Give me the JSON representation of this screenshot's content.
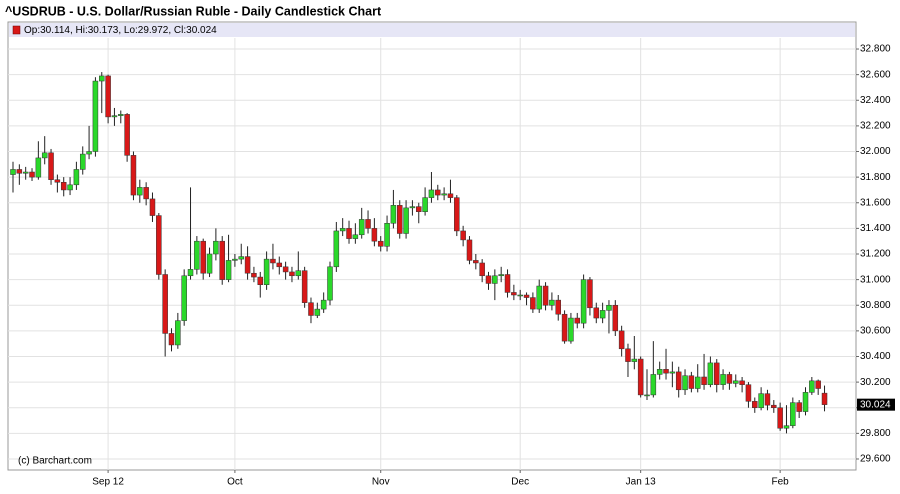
{
  "chart_data": {
    "type": "candlestick",
    "title": "^USDRUB - U.S. Dollar/Russian Ruble - Daily Candlestick Chart",
    "legend": "Op:30.114, Hi:30.173, Lo:29.972, Cl:30.024",
    "watermark": "(c) Barchart.com",
    "up_color": "#2ad82a",
    "down_color": "#d81818",
    "grid": true,
    "ylim": [
      29.514,
      32.886
    ],
    "yticks": [
      {
        "value": 29.6,
        "label": "29.600"
      },
      {
        "value": 29.8,
        "label": "29.800"
      },
      {
        "value": 30.0,
        "label": "30.000"
      },
      {
        "value": 30.2,
        "label": "30.200"
      },
      {
        "value": 30.4,
        "label": "30.400"
      },
      {
        "value": 30.6,
        "label": "30.600"
      },
      {
        "value": 30.8,
        "label": "30.800"
      },
      {
        "value": 31.0,
        "label": "31.000"
      },
      {
        "value": 31.2,
        "label": "31.200"
      },
      {
        "value": 31.4,
        "label": "31.400"
      },
      {
        "value": 31.6,
        "label": "31.600"
      },
      {
        "value": 31.8,
        "label": "31.800"
      },
      {
        "value": 32.0,
        "label": "32.000"
      },
      {
        "value": 32.2,
        "label": "32.200"
      },
      {
        "value": 32.4,
        "label": "32.400"
      },
      {
        "value": 32.6,
        "label": "32.600"
      },
      {
        "value": 32.8,
        "label": "32.800"
      }
    ],
    "categories": [
      null,
      null,
      null,
      null,
      null,
      null,
      null,
      null,
      null,
      null,
      null,
      null,
      null,
      null,
      null,
      "Sep 12",
      null,
      null,
      null,
      null,
      null,
      null,
      null,
      null,
      null,
      null,
      null,
      null,
      null,
      null,
      null,
      null,
      null,
      null,
      null,
      "Oct",
      null,
      null,
      null,
      null,
      null,
      null,
      null,
      null,
      null,
      null,
      null,
      null,
      null,
      null,
      null,
      null,
      null,
      null,
      null,
      null,
      null,
      null,
      "Nov",
      null,
      null,
      null,
      null,
      null,
      null,
      null,
      null,
      null,
      null,
      null,
      null,
      null,
      null,
      null,
      null,
      null,
      null,
      null,
      null,
      null,
      "Dec",
      null,
      null,
      null,
      null,
      null,
      null,
      null,
      null,
      null,
      null,
      null,
      null,
      null,
      null,
      null,
      null,
      null,
      null,
      "Jan 13",
      null,
      null,
      null,
      null,
      null,
      null,
      null,
      null,
      null,
      null,
      null,
      null,
      null,
      null,
      null,
      null,
      null,
      null,
      null,
      null,
      null,
      "Feb",
      null,
      null,
      null,
      null,
      null,
      null,
      null
    ],
    "open": [
      31.82,
      31.86,
      31.83,
      31.84,
      31.8,
      31.95,
      31.99,
      31.78,
      31.76,
      31.7,
      31.74,
      31.86,
      31.98,
      32.0,
      32.55,
      32.59,
      32.27,
      32.28,
      32.29,
      31.97,
      31.66,
      31.72,
      31.63,
      31.5,
      31.04,
      30.58,
      30.49,
      30.68,
      31.03,
      31.08,
      31.3,
      31.05,
      31.2,
      31.3,
      31.0,
      31.15,
      31.16,
      31.18,
      31.05,
      31.02,
      30.96,
      31.16,
      31.13,
      31.1,
      31.06,
      31.03,
      31.07,
      30.82,
      30.72,
      30.77,
      30.84,
      31.1,
      31.38,
      31.4,
      31.32,
      31.35,
      31.47,
      31.4,
      31.3,
      31.26,
      31.44,
      31.58,
      31.36,
      31.56,
      31.57,
      31.53,
      31.64,
      31.7,
      31.66,
      31.67,
      31.64,
      31.38,
      31.31,
      31.15,
      31.13,
      31.03,
      30.97,
      31.03,
      31.04,
      30.9,
      30.88,
      30.88,
      30.86,
      30.77,
      30.95,
      30.8,
      30.84,
      30.73,
      30.52,
      30.7,
      30.66,
      31.0,
      30.78,
      30.7,
      30.76,
      30.8,
      30.6,
      30.46,
      30.36,
      30.38,
      30.1,
      30.1,
      30.26,
      30.3,
      30.27,
      30.28,
      30.14,
      30.25,
      30.15,
      30.24,
      30.18,
      30.35,
      30.18,
      30.26,
      30.19,
      30.21,
      30.18,
      30.05,
      30.0,
      30.11,
      30.02,
      30.0,
      29.84,
      29.86,
      30.04,
      29.97,
      30.12,
      30.21,
      30.114
    ],
    "high": [
      31.92,
      31.9,
      31.88,
      31.87,
      32.08,
      32.12,
      32.02,
      31.82,
      31.8,
      31.8,
      31.92,
      32.04,
      32.2,
      32.58,
      32.62,
      32.6,
      32.34,
      32.32,
      32.3,
      32.0,
      31.78,
      31.76,
      31.68,
      31.52,
      31.08,
      30.62,
      30.74,
      31.08,
      31.72,
      31.34,
      31.32,
      31.25,
      31.4,
      31.34,
      31.35,
      31.2,
      31.28,
      31.26,
      31.1,
      31.06,
      31.22,
      31.28,
      31.18,
      31.14,
      31.1,
      31.22,
      31.1,
      30.86,
      30.82,
      30.9,
      31.14,
      31.45,
      31.48,
      31.46,
      31.44,
      31.56,
      31.54,
      31.48,
      31.34,
      31.5,
      31.7,
      31.62,
      31.62,
      31.62,
      31.6,
      31.72,
      31.84,
      31.74,
      31.72,
      31.78,
      31.66,
      31.42,
      31.34,
      31.2,
      31.16,
      31.06,
      31.08,
      31.1,
      31.08,
      30.96,
      30.92,
      30.9,
      30.9,
      31.0,
      30.98,
      30.9,
      30.88,
      30.76,
      30.74,
      30.74,
      31.04,
      31.02,
      30.82,
      30.82,
      30.84,
      30.84,
      30.64,
      30.5,
      30.56,
      30.4,
      30.3,
      30.52,
      30.36,
      30.46,
      30.36,
      30.32,
      30.3,
      30.28,
      30.34,
      30.42,
      30.4,
      30.38,
      30.3,
      30.28,
      30.26,
      30.24,
      30.2,
      30.08,
      30.16,
      30.14,
      30.06,
      30.04,
      30.02,
      30.08,
      30.06,
      30.16,
      30.24,
      30.22,
      30.173
    ],
    "low": [
      31.68,
      31.74,
      31.78,
      31.77,
      31.78,
      31.9,
      31.74,
      31.68,
      31.65,
      31.66,
      31.7,
      31.82,
      31.94,
      31.96,
      32.3,
      32.22,
      32.2,
      32.22,
      31.92,
      31.62,
      31.6,
      31.58,
      31.45,
      31.0,
      30.4,
      30.44,
      30.46,
      30.64,
      31.0,
      31.04,
      31.0,
      31.02,
      31.15,
      30.96,
      30.98,
      31.1,
      31.12,
      31.0,
      30.98,
      30.86,
      30.92,
      31.08,
      31.04,
      31.0,
      30.98,
      31.0,
      30.78,
      30.66,
      30.7,
      30.74,
      30.8,
      31.06,
      31.34,
      31.28,
      31.28,
      31.32,
      31.36,
      31.26,
      31.22,
      31.22,
      31.4,
      31.32,
      31.32,
      31.5,
      31.44,
      31.5,
      31.6,
      31.62,
      31.62,
      31.6,
      31.34,
      31.26,
      31.12,
      31.08,
      30.98,
      30.92,
      30.84,
      30.98,
      30.86,
      30.84,
      30.84,
      30.8,
      30.74,
      30.74,
      30.76,
      30.76,
      30.68,
      30.5,
      30.5,
      30.62,
      30.62,
      30.72,
      30.66,
      30.66,
      30.58,
      30.56,
      30.4,
      30.24,
      30.3,
      30.08,
      30.06,
      30.08,
      30.22,
      30.22,
      30.16,
      30.08,
      30.1,
      30.12,
      30.12,
      30.14,
      30.16,
      30.12,
      30.14,
      30.14,
      30.16,
      30.12,
      30.0,
      29.96,
      29.98,
      29.98,
      29.96,
      29.82,
      29.8,
      29.84,
      29.92,
      29.94,
      30.1,
      30.1,
      29.972
    ],
    "close": [
      31.86,
      31.83,
      31.84,
      31.8,
      31.95,
      31.99,
      31.78,
      31.76,
      31.7,
      31.74,
      31.86,
      31.98,
      32.0,
      32.55,
      32.59,
      32.27,
      32.28,
      32.29,
      31.97,
      31.66,
      31.72,
      31.63,
      31.5,
      31.04,
      30.58,
      30.49,
      30.68,
      31.03,
      31.08,
      31.3,
      31.05,
      31.2,
      31.3,
      31.0,
      31.15,
      31.16,
      31.18,
      31.05,
      31.02,
      30.96,
      31.16,
      31.13,
      31.1,
      31.06,
      31.03,
      31.07,
      30.82,
      30.72,
      30.77,
      30.84,
      31.1,
      31.38,
      31.4,
      31.32,
      31.35,
      31.47,
      31.4,
      31.3,
      31.26,
      31.44,
      31.58,
      31.36,
      31.56,
      31.57,
      31.53,
      31.64,
      31.7,
      31.66,
      31.67,
      31.64,
      31.38,
      31.31,
      31.15,
      31.13,
      31.03,
      30.97,
      31.03,
      31.04,
      30.9,
      30.88,
      30.88,
      30.86,
      30.77,
      30.95,
      30.8,
      30.84,
      30.73,
      30.52,
      30.7,
      30.66,
      31.0,
      30.78,
      30.7,
      30.76,
      30.8,
      30.6,
      30.46,
      30.36,
      30.38,
      30.1,
      30.1,
      30.26,
      30.3,
      30.27,
      30.28,
      30.14,
      30.25,
      30.15,
      30.24,
      30.18,
      30.35,
      30.18,
      30.26,
      30.19,
      30.21,
      30.18,
      30.05,
      30.0,
      30.11,
      30.02,
      30.0,
      29.84,
      29.86,
      30.04,
      29.97,
      30.12,
      30.21,
      30.15,
      30.024
    ]
  }
}
